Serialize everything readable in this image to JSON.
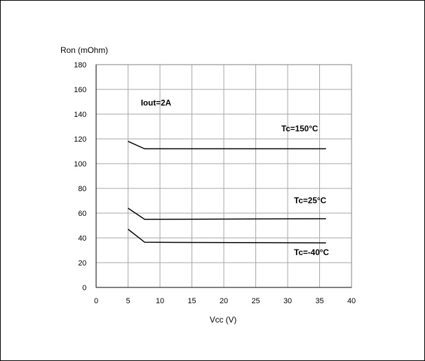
{
  "chart_data": {
    "type": "line",
    "title": "",
    "xlabel": "Vcc (V)",
    "ylabel": "Ron (mOhm)",
    "xlim": [
      0,
      40
    ],
    "ylim": [
      0,
      180
    ],
    "xticks": [
      "0",
      "5",
      "10",
      "15",
      "20",
      "25",
      "30",
      "35",
      "40"
    ],
    "yticks": [
      "0",
      "20",
      "40",
      "60",
      "80",
      "100",
      "120",
      "140",
      "160",
      "180"
    ],
    "grid": true,
    "annotations": [
      {
        "text": "Iout=2A",
        "x": 7,
        "y": 147
      },
      {
        "text": "Tc=150°C",
        "x": 29,
        "y": 126
      },
      {
        "text": "Tc=25°C",
        "x": 31,
        "y": 68
      },
      {
        "text": "Tc=-40°C",
        "x": 31,
        "y": 26
      }
    ],
    "series": [
      {
        "label": "Tc=150°C",
        "x": [
          5,
          7.6,
          36
        ],
        "y": [
          118,
          112,
          112
        ]
      },
      {
        "label": "Tc=25°C",
        "x": [
          5,
          7.6,
          36
        ],
        "y": [
          64,
          55,
          55.5
        ]
      },
      {
        "label": "Tc=-40°C",
        "x": [
          5,
          7.6,
          36
        ],
        "y": [
          47,
          36.5,
          36
        ]
      }
    ]
  }
}
